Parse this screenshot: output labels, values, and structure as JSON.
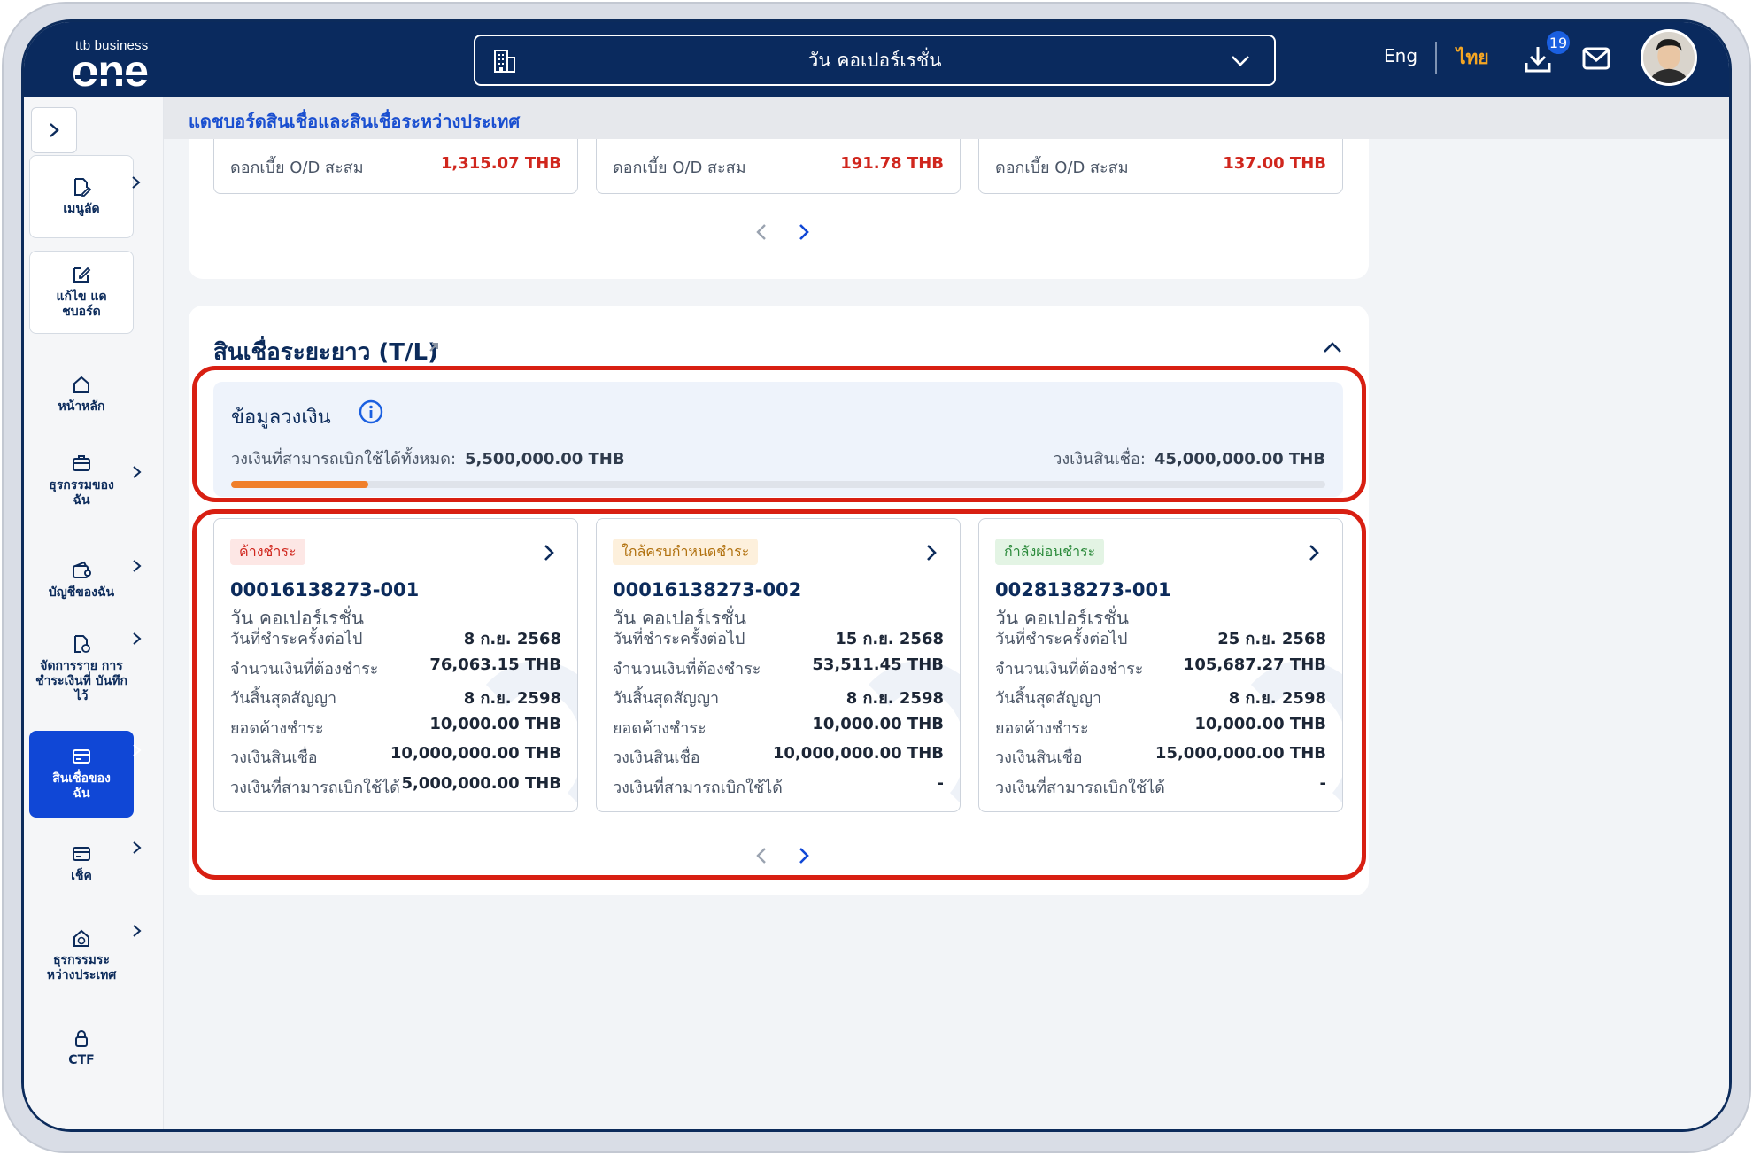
{
  "brand": {
    "small": "ttb business",
    "big": "one"
  },
  "header": {
    "company": "วัน คอเปอร์เรชั่น",
    "lang_eng": "Eng",
    "lang_thai": "ไทย",
    "download_badge": "19"
  },
  "sidebar": {
    "items": [
      {
        "label": "เมนูลัด",
        "icon": "document-edit-icon"
      },
      {
        "label": "แก้ไข แดชบอร์ด",
        "icon": "pencil-icon"
      },
      {
        "label": "หน้าหลัก",
        "icon": "home-icon"
      },
      {
        "label": "ธุรกรรมของ ฉัน",
        "icon": "briefcase-icon"
      },
      {
        "label": "บัญชีของฉัน",
        "icon": "wallet-icon"
      },
      {
        "label": "จัดการราย การชำระเงินที่ บันทึกไว้",
        "icon": "saved-payment-icon"
      },
      {
        "label": "สินเชื่อของ ฉัน",
        "icon": "card-icon"
      },
      {
        "label": "เช็ค",
        "icon": "cheque-icon"
      },
      {
        "label": "ธุรกรรมระ หว่างประเทศ",
        "icon": "globe-house-icon"
      },
      {
        "label": "CTF",
        "icon": "lock-icon"
      }
    ]
  },
  "breadcrumb": "แดชบอร์ดสินเชื่อและสินเชื่อระหว่างประเทศ",
  "od_cards": [
    {
      "label": "ดอกเบี้ย O/D สะสม",
      "value": "1,315.07 THB"
    },
    {
      "label": "ดอกเบี้ย O/D สะสม",
      "value": "191.78 THB"
    },
    {
      "label": "ดอกเบี้ย O/D สะสม",
      "value": "137.00 THB"
    }
  ],
  "tl_section": {
    "title": "สินเชื่อระยะยาว (T/L)",
    "limit": {
      "title": "ข้อมูลวงเงิน",
      "available_label": "วงเงินที่สามารถเบิกใช้ได้ทั้งหมด:",
      "available_value": "5,500,000.00 THB",
      "total_label": "วงเงินสินเชื่อ:",
      "total_value": "45,000,000.00 THB",
      "used_fraction": 0.125
    },
    "labels": {
      "next_due": "วันที่ชำระครั้งต่อไป",
      "amount_due": "จำนวนเงินที่ต้องชำระ",
      "contract_end": "วันสิ้นสุดสัญญา",
      "outstanding": "ยอดค้างชำระ",
      "credit_limit": "วงเงินสินเชื่อ",
      "available": "วงเงินที่สามารถเบิกใช้ได้"
    },
    "loans": [
      {
        "status": "ค้างชำระ",
        "status_type": "overdue",
        "account": "00016138273-001",
        "company": "วัน คอเปอร์เรชั่น",
        "next_due": "8 ก.ย. 2568",
        "amount_due": "76,063.15 THB",
        "contract_end": "8 ก.ย. 2598",
        "outstanding": "10,000.00 THB",
        "credit_limit": "10,000,000.00 THB",
        "available": "5,000,000.00 THB"
      },
      {
        "status": "ใกล้ครบกำหนดชำระ",
        "status_type": "near",
        "account": "00016138273-002",
        "company": "วัน คอเปอร์เรชั่น",
        "next_due": "15 ก.ย. 2568",
        "amount_due": "53,511.45 THB",
        "contract_end": "8 ก.ย. 2598",
        "outstanding": "10,000.00 THB",
        "credit_limit": "10,000,000.00 THB",
        "available": "-"
      },
      {
        "status": "กำลังผ่อนชำระ",
        "status_type": "paying",
        "account": "0028138273-001",
        "company": "วัน คอเปอร์เรชั่น",
        "next_due": "25 ก.ย. 2568",
        "amount_due": "105,687.27 THB",
        "contract_end": "8 ก.ย. 2598",
        "outstanding": "10,000.00 THB",
        "credit_limit": "15,000,000.00 THB",
        "available": "-"
      }
    ]
  },
  "colors": {
    "navy": "#0a2a5e",
    "accent_blue": "#1047d6",
    "overdue_red": "#d0261d",
    "progress_orange": "#f07f2a",
    "highlight_red": "#d81f12"
  }
}
